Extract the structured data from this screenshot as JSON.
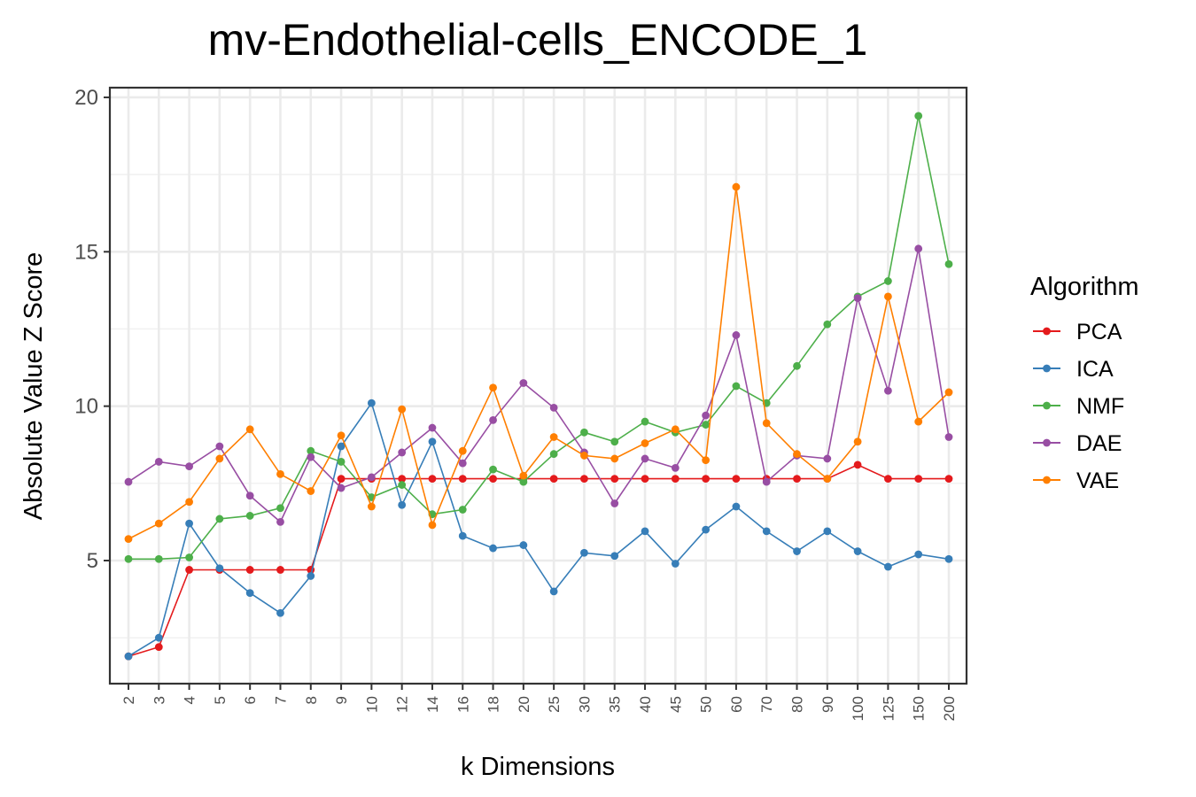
{
  "chart_data": {
    "type": "line",
    "title": "mv-Endothelial-cells_ENCODE_1",
    "xlabel": "k Dimensions",
    "ylabel": "Absolute Value Z Score",
    "x": [
      "2",
      "3",
      "4",
      "5",
      "6",
      "7",
      "8",
      "9",
      "10",
      "12",
      "14",
      "16",
      "18",
      "20",
      "25",
      "30",
      "35",
      "40",
      "45",
      "50",
      "60",
      "70",
      "80",
      "90",
      "100",
      "125",
      "150",
      "200"
    ],
    "yticks": [
      "5",
      "10",
      "15",
      "20"
    ],
    "ylim": [
      1.2,
      20.3
    ],
    "grid": true,
    "legend": {
      "title": "Algorithm",
      "placement": "right"
    },
    "series": [
      {
        "name": "PCA",
        "color": "#e41a1c",
        "values": [
          1.9,
          2.2,
          4.7,
          4.7,
          4.7,
          4.7,
          4.7,
          7.65,
          7.65,
          7.65,
          7.65,
          7.65,
          7.65,
          7.65,
          7.65,
          7.65,
          7.65,
          7.65,
          7.65,
          7.65,
          7.65,
          7.65,
          7.65,
          7.65,
          8.1,
          7.65,
          7.65,
          7.65
        ]
      },
      {
        "name": "ICA",
        "color": "#377eb8",
        "values": [
          1.9,
          2.5,
          6.2,
          4.75,
          3.95,
          3.3,
          4.5,
          8.7,
          10.1,
          6.8,
          8.85,
          5.8,
          5.4,
          5.5,
          4.0,
          5.25,
          5.15,
          5.95,
          4.9,
          6.0,
          6.75,
          5.95,
          5.3,
          5.95,
          5.3,
          4.8,
          5.2,
          5.05
        ]
      },
      {
        "name": "NMF",
        "color": "#4daf4a",
        "values": [
          5.05,
          5.05,
          5.1,
          6.35,
          6.45,
          6.7,
          8.55,
          8.2,
          7.05,
          7.45,
          6.5,
          6.65,
          7.95,
          7.55,
          8.45,
          9.15,
          8.85,
          9.5,
          9.15,
          9.4,
          10.65,
          10.1,
          11.3,
          12.65,
          13.55,
          14.05,
          19.4,
          14.6
        ]
      },
      {
        "name": "DAE",
        "color": "#984ea3",
        "values": [
          7.55,
          8.2,
          8.05,
          8.7,
          7.1,
          6.25,
          8.35,
          7.35,
          7.7,
          8.5,
          9.3,
          8.15,
          9.55,
          10.75,
          9.95,
          8.5,
          6.85,
          8.3,
          8.0,
          9.7,
          12.3,
          7.55,
          8.4,
          8.3,
          13.5,
          10.5,
          15.1,
          9.0
        ]
      },
      {
        "name": "VAE",
        "color": "#ff7f00",
        "values": [
          5.7,
          6.2,
          6.9,
          8.3,
          9.25,
          7.8,
          7.25,
          9.05,
          6.75,
          9.9,
          6.15,
          8.55,
          10.6,
          7.75,
          9.0,
          8.4,
          8.3,
          8.8,
          9.25,
          8.25,
          17.1,
          9.45,
          8.45,
          7.65,
          8.85,
          13.55,
          9.5,
          10.45
        ]
      }
    ]
  }
}
